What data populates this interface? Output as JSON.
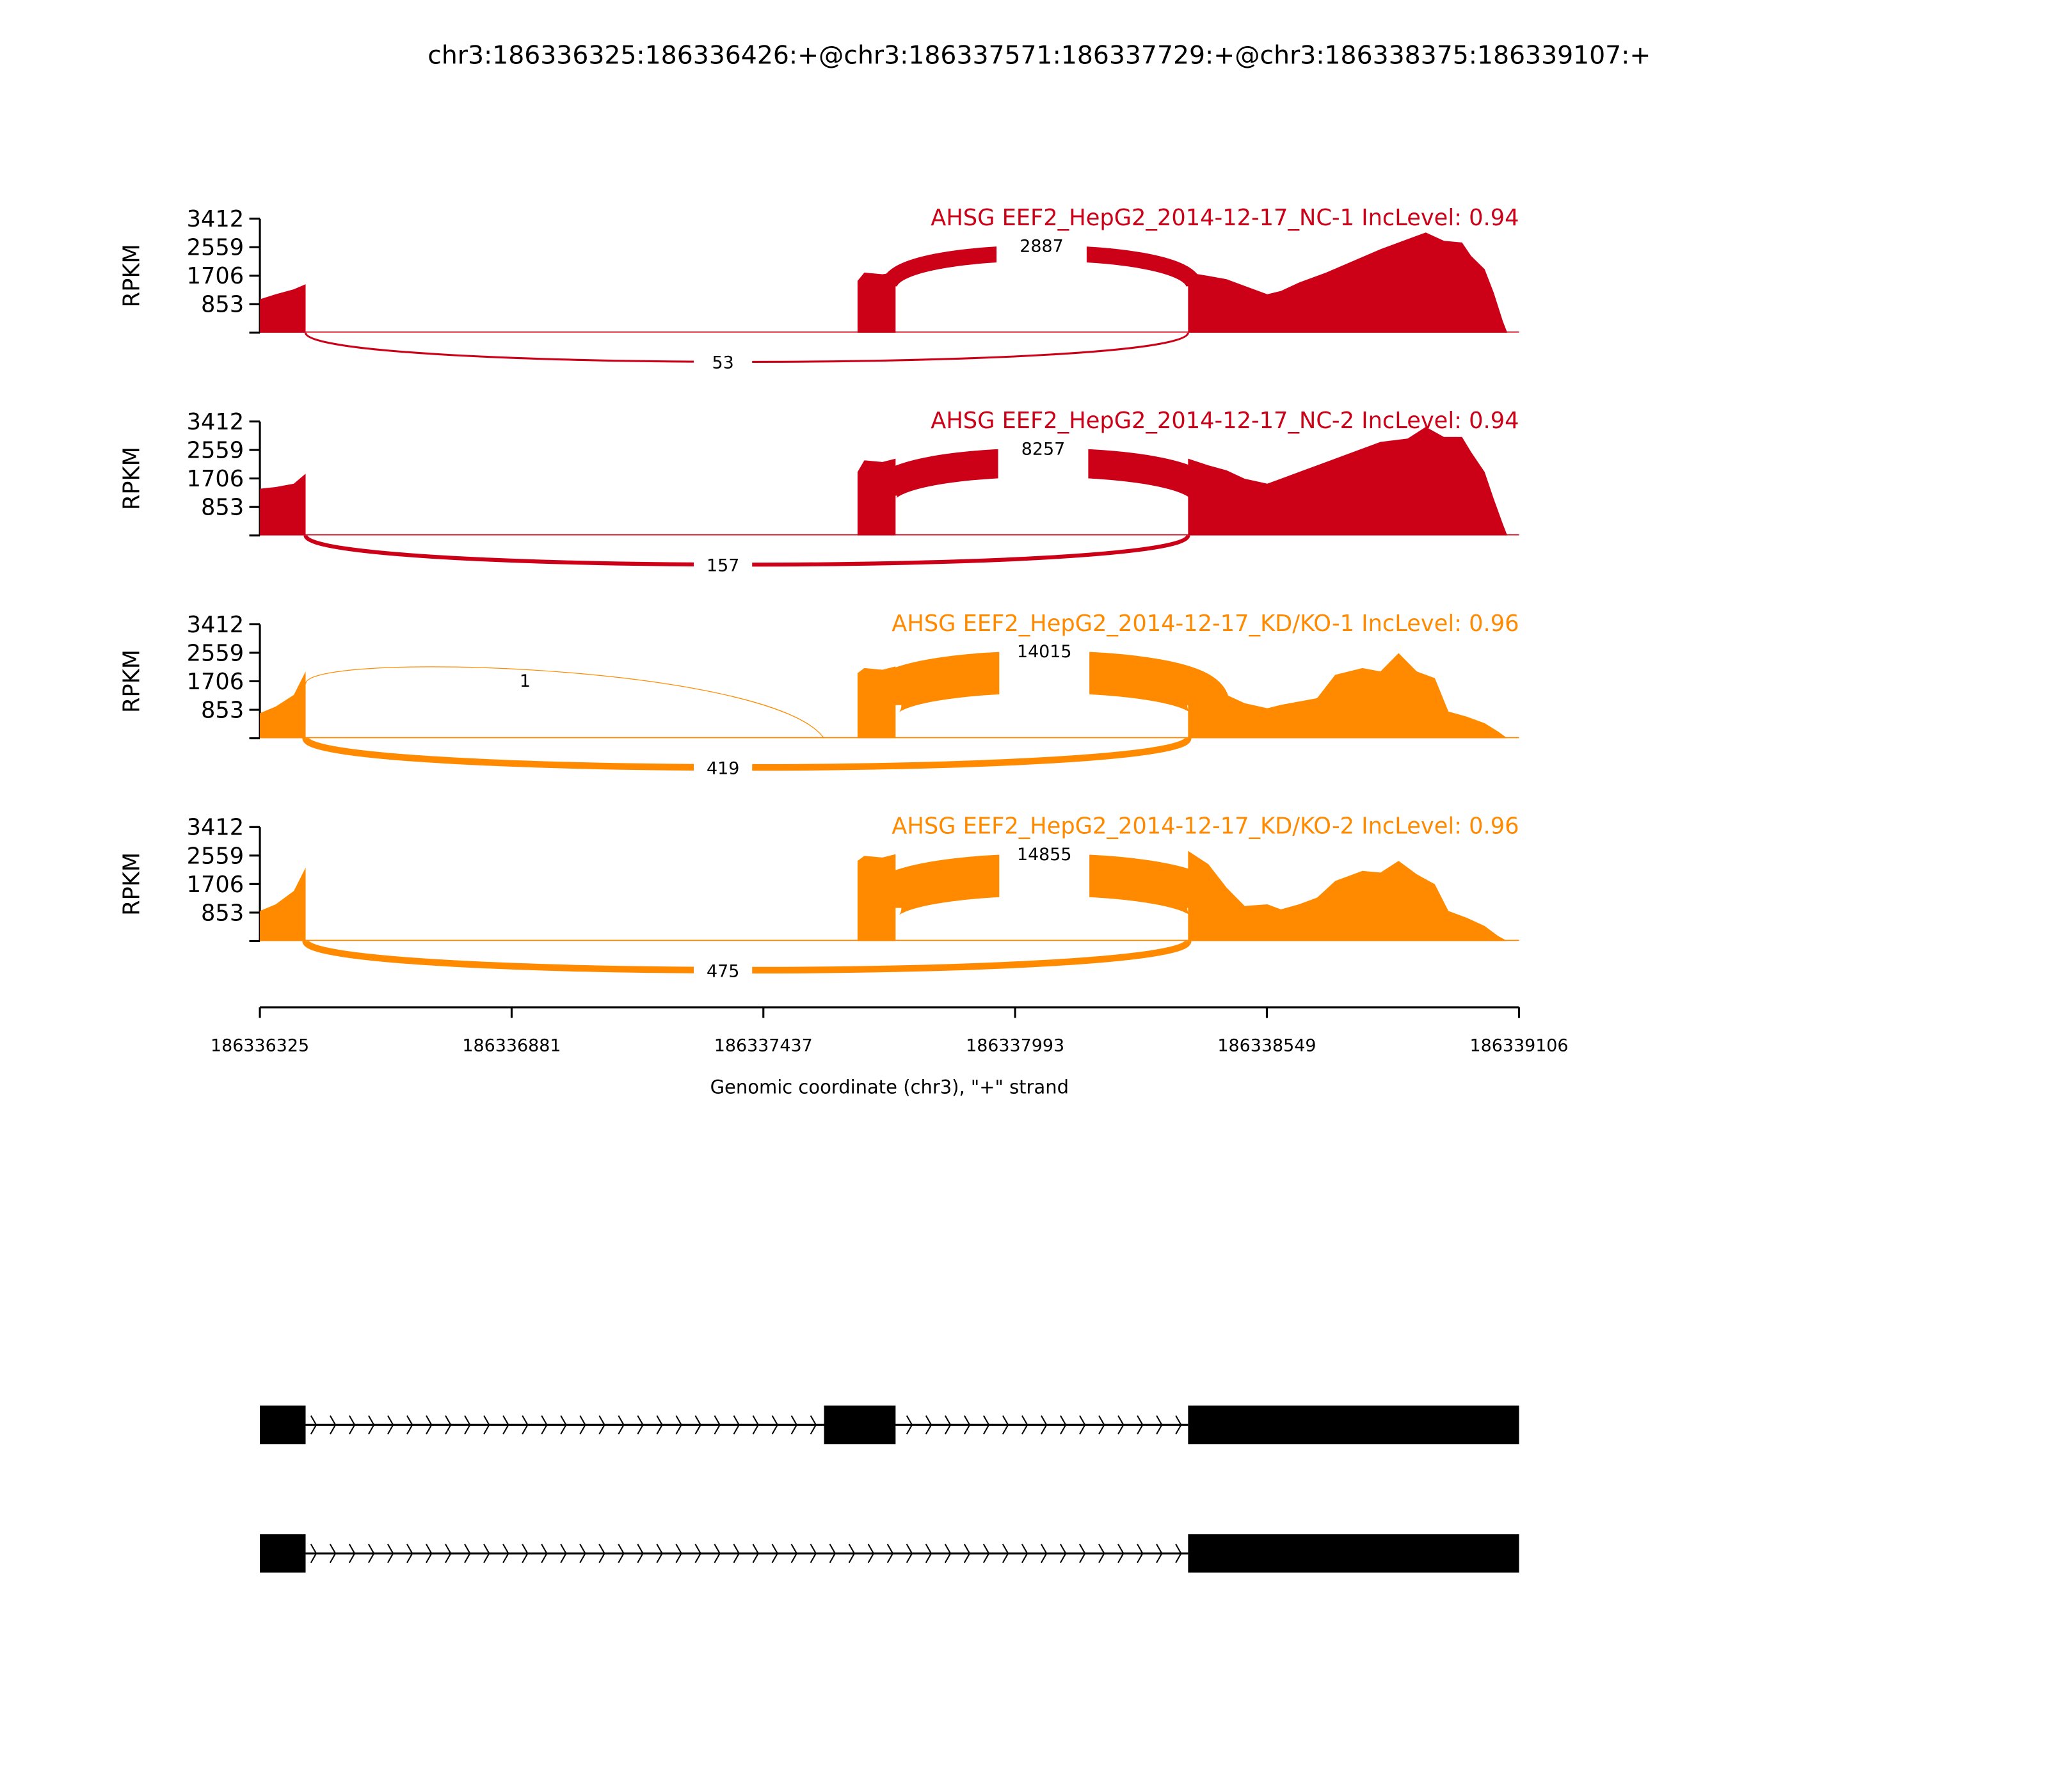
{
  "chart_data": {
    "type": "area",
    "title": "chr3:186336325:186336426:+@chr3:186337571:186337729:+@chr3:186338375:186339107:+",
    "xlabel": "Genomic coordinate (chr3), \"+\" strand",
    "ylabel": "RPKM",
    "xlim": [
      186336325,
      186339106
    ],
    "x_ticks": [
      "186336325",
      "186336881",
      "186337437",
      "186337993",
      "186338549",
      "186339106"
    ],
    "x_tick_values": [
      186336325,
      186336881,
      186337437,
      186337993,
      186338549,
      186339106
    ],
    "ylim": [
      0,
      3412
    ],
    "y_ticks": [
      "3412",
      "2559",
      "1706",
      "853"
    ],
    "y_tick_values": [
      3412,
      2559,
      1706,
      853
    ],
    "exons": [
      [
        186336325,
        186336426
      ],
      [
        186337571,
        186337729
      ],
      [
        186338375,
        186339107
      ]
    ],
    "samples": [
      {
        "label": "AHSG EEF2_HepG2_2014-12-17_NC-1 IncLevel: 0.94",
        "color": "#cc0016",
        "coverage": {
          "e1": [
            [
              186336325,
              1000
            ],
            [
              186336360,
              1150
            ],
            [
              186336400,
              1300
            ],
            [
              186336426,
              1450
            ]
          ],
          "e2": [
            [
              186337645,
              1550
            ],
            [
              186337660,
              1800
            ],
            [
              186337700,
              1750
            ],
            [
              186337729,
              1800
            ]
          ],
          "e3": [
            [
              186338375,
              1800
            ],
            [
              186338420,
              1700
            ],
            [
              186338460,
              1600
            ],
            [
              186338500,
              1400
            ],
            [
              186338550,
              1150
            ],
            [
              186338580,
              1250
            ],
            [
              186338620,
              1500
            ],
            [
              186338680,
              1800
            ],
            [
              186338740,
              2150
            ],
            [
              186338800,
              2500
            ],
            [
              186338860,
              2800
            ],
            [
              186338900,
              3000
            ],
            [
              186338940,
              2750
            ],
            [
              186338980,
              2700
            ],
            [
              186339000,
              2300
            ],
            [
              186339030,
              1900
            ],
            [
              186339050,
              1200
            ],
            [
              186339070,
              350
            ],
            [
              186339080,
              0
            ]
          ]
        },
        "junctions_top": [
          {
            "from": 186337715,
            "to": 186338388,
            "count": "2887",
            "width": 12
          }
        ],
        "junctions_bottom": [
          {
            "from": 186336426,
            "to": 186338375,
            "count": "53",
            "width": 1.5
          }
        ]
      },
      {
        "label": "AHSG EEF2_HepG2_2014-12-17_NC-2 IncLevel: 0.94",
        "color": "#cc0016",
        "coverage": {
          "e1": [
            [
              186336325,
              1400
            ],
            [
              186336360,
              1450
            ],
            [
              186336400,
              1550
            ],
            [
              186336426,
              1850
            ]
          ],
          "e2": [
            [
              186337645,
              1900
            ],
            [
              186337660,
              2250
            ],
            [
              186337700,
              2200
            ],
            [
              186337729,
              2300
            ]
          ],
          "e3": [
            [
              186338375,
              2300
            ],
            [
              186338420,
              2100
            ],
            [
              186338460,
              1950
            ],
            [
              186338500,
              1700
            ],
            [
              186338550,
              1550
            ],
            [
              186338580,
              1700
            ],
            [
              186338620,
              1900
            ],
            [
              186338680,
              2200
            ],
            [
              186338740,
              2500
            ],
            [
              186338800,
              2800
            ],
            [
              186338860,
              2900
            ],
            [
              186338900,
              3250
            ],
            [
              186338940,
              2950
            ],
            [
              186338980,
              2950
            ],
            [
              186339000,
              2500
            ],
            [
              186339030,
              1900
            ],
            [
              186339050,
              1100
            ],
            [
              186339070,
              350
            ],
            [
              186339080,
              0
            ]
          ]
        },
        "junctions_top": [
          {
            "from": 186337700,
            "to": 186338410,
            "count": "8257",
            "width": 22
          }
        ],
        "junctions_bottom": [
          {
            "from": 186336426,
            "to": 186338375,
            "count": "157",
            "width": 3
          }
        ]
      },
      {
        "label": "AHSG EEF2_HepG2_2014-12-17_KD/KO-1 IncLevel: 0.96",
        "color": "#ff8a00",
        "coverage": {
          "e1": [
            [
              186336325,
              750
            ],
            [
              186336360,
              950
            ],
            [
              186336400,
              1300
            ],
            [
              186336426,
              2000
            ]
          ],
          "e2": [
            [
              186337645,
              1950
            ],
            [
              186337660,
              2100
            ],
            [
              186337700,
              2050
            ],
            [
              186337729,
              2150
            ]
          ],
          "e3": [
            [
              186338375,
              2050
            ],
            [
              186338420,
              1700
            ],
            [
              186338460,
              1300
            ],
            [
              186338500,
              1050
            ],
            [
              186338550,
              900
            ],
            [
              186338580,
              1000
            ],
            [
              186338620,
              1100
            ],
            [
              186338660,
              1200
            ],
            [
              186338700,
              1900
            ],
            [
              186338760,
              2100
            ],
            [
              186338800,
              2000
            ],
            [
              186338840,
              2550
            ],
            [
              186338880,
              2000
            ],
            [
              186338920,
              1800
            ],
            [
              186338950,
              800
            ],
            [
              186338990,
              650
            ],
            [
              186339030,
              450
            ],
            [
              186339060,
              200
            ],
            [
              186339080,
              0
            ]
          ]
        },
        "junctions_top": [
          {
            "from": 186337695,
            "to": 186338420,
            "count": "14015",
            "width": 32
          },
          {
            "from": 186336426,
            "to": 186337571,
            "count": "1",
            "width": 0.6,
            "shape": "long"
          }
        ],
        "junctions_bottom": [
          {
            "from": 186336426,
            "to": 186338375,
            "count": "419",
            "width": 5
          }
        ]
      },
      {
        "label": "AHSG EEF2_HepG2_2014-12-17_KD/KO-2 IncLevel: 0.96",
        "color": "#ff8a00",
        "coverage": {
          "e1": [
            [
              186336325,
              900
            ],
            [
              186336360,
              1100
            ],
            [
              186336400,
              1500
            ],
            [
              186336426,
              2200
            ]
          ],
          "e2": [
            [
              186337645,
              2400
            ],
            [
              186337660,
              2550
            ],
            [
              186337700,
              2500
            ],
            [
              186337729,
              2600
            ]
          ],
          "e3": [
            [
              186338375,
              2700
            ],
            [
              186338420,
              2300
            ],
            [
              186338460,
              1600
            ],
            [
              186338500,
              1050
            ],
            [
              186338550,
              1100
            ],
            [
              186338580,
              950
            ],
            [
              186338620,
              1100
            ],
            [
              186338660,
              1300
            ],
            [
              186338700,
              1800
            ],
            [
              186338760,
              2100
            ],
            [
              186338800,
              2050
            ],
            [
              186338840,
              2400
            ],
            [
              186338880,
              2000
            ],
            [
              186338920,
              1700
            ],
            [
              186338950,
              900
            ],
            [
              186338990,
              700
            ],
            [
              186339030,
              450
            ],
            [
              186339060,
              150
            ],
            [
              186339080,
              0
            ]
          ]
        },
        "junctions_top": [
          {
            "from": 186337695,
            "to": 186338420,
            "count": "14855",
            "width": 32
          }
        ],
        "junctions_bottom": [
          {
            "from": 186336426,
            "to": 186338375,
            "count": "475",
            "width": 5
          }
        ]
      }
    ],
    "gene_models": [
      {
        "exons": [
          [
            186336325,
            186336426
          ],
          [
            186337571,
            186337729
          ],
          [
            186338375,
            186339106
          ]
        ]
      },
      {
        "exons": [
          [
            186336325,
            186336426
          ],
          [
            186338375,
            186339106
          ]
        ]
      }
    ]
  }
}
